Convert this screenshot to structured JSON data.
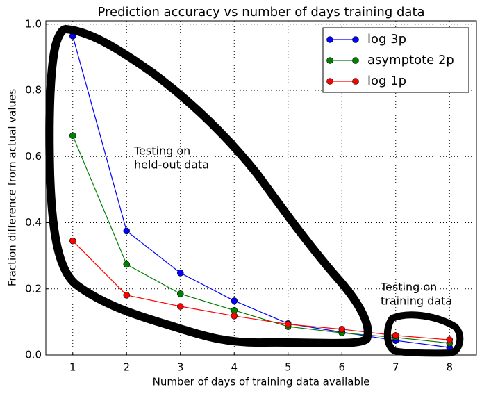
{
  "chart_data": {
    "type": "line",
    "title": "Prediction accuracy vs number of days training data",
    "x_label": "Number of days of training data available",
    "y_label": "Fraction difference from actual values",
    "x": [
      1,
      2,
      3,
      4,
      5,
      6,
      7,
      8
    ],
    "series": [
      {
        "name": "log 3p",
        "color": "#0000ff",
        "values": [
          0.964,
          0.375,
          0.248,
          0.164,
          0.095,
          0.069,
          0.044,
          0.023
        ]
      },
      {
        "name": "asymptote 2p",
        "color": "#008000",
        "values": [
          0.663,
          0.274,
          0.185,
          0.135,
          0.086,
          0.067,
          0.053,
          0.036
        ]
      },
      {
        "name": "log 1p",
        "color": "#ff0000",
        "values": [
          0.345,
          0.181,
          0.147,
          0.118,
          0.093,
          0.078,
          0.059,
          0.046
        ]
      }
    ],
    "xlim": [
      0.5,
      8.5
    ],
    "ylim": [
      0,
      1.01
    ],
    "xticks": [
      1,
      2,
      3,
      4,
      5,
      6,
      7,
      8
    ],
    "yticks": [
      {
        "value": 0,
        "label": "0.0"
      },
      0.2,
      0.4,
      0.6,
      0.8,
      {
        "value": 1,
        "label": "1.0"
      }
    ],
    "grid": true,
    "legend": "upper right",
    "annotations": [
      [
        "Testing on",
        "held-out data"
      ],
      [
        "Testing on",
        "training data"
      ]
    ]
  }
}
